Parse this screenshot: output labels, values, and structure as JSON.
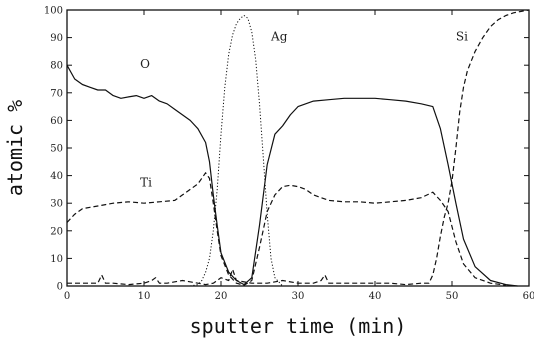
{
  "chart_data": {
    "type": "line",
    "title": "",
    "xlabel": "sputter time (min)",
    "ylabel": "atomic %",
    "xlim": [
      0,
      60
    ],
    "ylim": [
      0,
      100
    ],
    "xticks": [
      0,
      10,
      20,
      30,
      40,
      50,
      60
    ],
    "yticks": [
      0,
      10,
      20,
      30,
      40,
      50,
      60,
      70,
      80,
      90,
      100
    ],
    "grid": false,
    "legend": "inline labels",
    "series": [
      {
        "name": "O",
        "style": "solid",
        "x": [
          0,
          1,
          2,
          3,
          4,
          5,
          6,
          7,
          8,
          9,
          10,
          11,
          12,
          13,
          14,
          15,
          16,
          17,
          18,
          18.5,
          19,
          19.5,
          20,
          21,
          22,
          23,
          24,
          25,
          26,
          27,
          28,
          29,
          30,
          32,
          34,
          36,
          38,
          40,
          42,
          44,
          46,
          47.5,
          48.5,
          49.5,
          50.5,
          51.5,
          53,
          55,
          57,
          58.5
        ],
        "y": [
          80,
          75,
          73,
          72,
          71,
          71,
          69,
          68,
          68.5,
          69,
          68,
          69,
          67,
          66,
          64,
          62,
          60,
          57,
          52,
          45,
          33,
          22,
          12,
          5,
          2,
          0.5,
          3,
          22,
          44,
          55,
          58,
          62,
          65,
          67,
          67.5,
          68,
          68,
          68,
          67.5,
          67,
          66,
          65,
          57,
          44,
          30,
          17,
          7,
          2,
          0.5,
          0
        ]
      },
      {
        "name": "Ti",
        "style": "dashed",
        "x": [
          0,
          1,
          2,
          3,
          4,
          5,
          6,
          8,
          10,
          12,
          14,
          15,
          16,
          17,
          18,
          18.5,
          19,
          19.5,
          20,
          21,
          22,
          23,
          24,
          25,
          26,
          27,
          28,
          29,
          30,
          31,
          32,
          34,
          36,
          38,
          40,
          42,
          44,
          46,
          47.5,
          48.5,
          49.5,
          50.5,
          51.5,
          53,
          55,
          57
        ],
        "y": [
          23,
          26,
          28,
          28.5,
          29,
          29.5,
          30,
          30.5,
          30,
          30.5,
          31,
          33,
          35,
          37,
          41,
          39,
          30,
          20,
          11,
          4,
          1,
          0.3,
          2,
          14,
          27,
          33,
          36,
          36.5,
          36,
          35,
          33,
          31,
          30.5,
          30.5,
          30,
          30.5,
          31,
          32,
          34,
          31,
          27,
          16,
          8,
          3,
          1,
          0.3
        ]
      },
      {
        "name": "Ag",
        "style": "dotted",
        "x": [
          16,
          17,
          17.5,
          18,
          18.5,
          19,
          19.5,
          20,
          20.5,
          21,
          21.5,
          22,
          22.5,
          23,
          23.5,
          24,
          24.5,
          25,
          25.5,
          26,
          26.5,
          27,
          28
        ],
        "y": [
          0,
          0.5,
          2,
          5,
          10,
          20,
          35,
          55,
          72,
          84,
          91,
          95,
          97,
          98,
          97,
          92,
          82,
          66,
          46,
          26,
          10,
          3,
          0
        ]
      },
      {
        "name": "Si",
        "style": "dashed",
        "x": [
          0,
          2,
          4,
          4.5,
          5,
          6,
          8,
          10,
          11,
          11.5,
          12,
          13,
          15,
          17,
          18,
          19,
          20,
          21,
          21.5,
          22,
          24,
          26,
          28,
          30,
          32,
          33,
          33.5,
          34,
          36,
          38,
          40,
          42,
          44,
          46,
          47,
          47.5,
          48,
          48.5,
          49,
          49.5,
          50,
          50.5,
          51,
          51.5,
          52,
          53,
          54,
          55,
          56,
          57,
          58,
          59,
          60
        ],
        "y": [
          1,
          1,
          1,
          4,
          1,
          1,
          0.5,
          1,
          2,
          3,
          1,
          1,
          2,
          1,
          0.5,
          1,
          3,
          2,
          6,
          2,
          1,
          1,
          2,
          1,
          1,
          2,
          4,
          1,
          1,
          1,
          1,
          1,
          0.5,
          1,
          1,
          4,
          10,
          18,
          25,
          30,
          38,
          50,
          63,
          72,
          78,
          85,
          90,
          94,
          96.5,
          98,
          99,
          99.5,
          100
        ]
      }
    ]
  }
}
